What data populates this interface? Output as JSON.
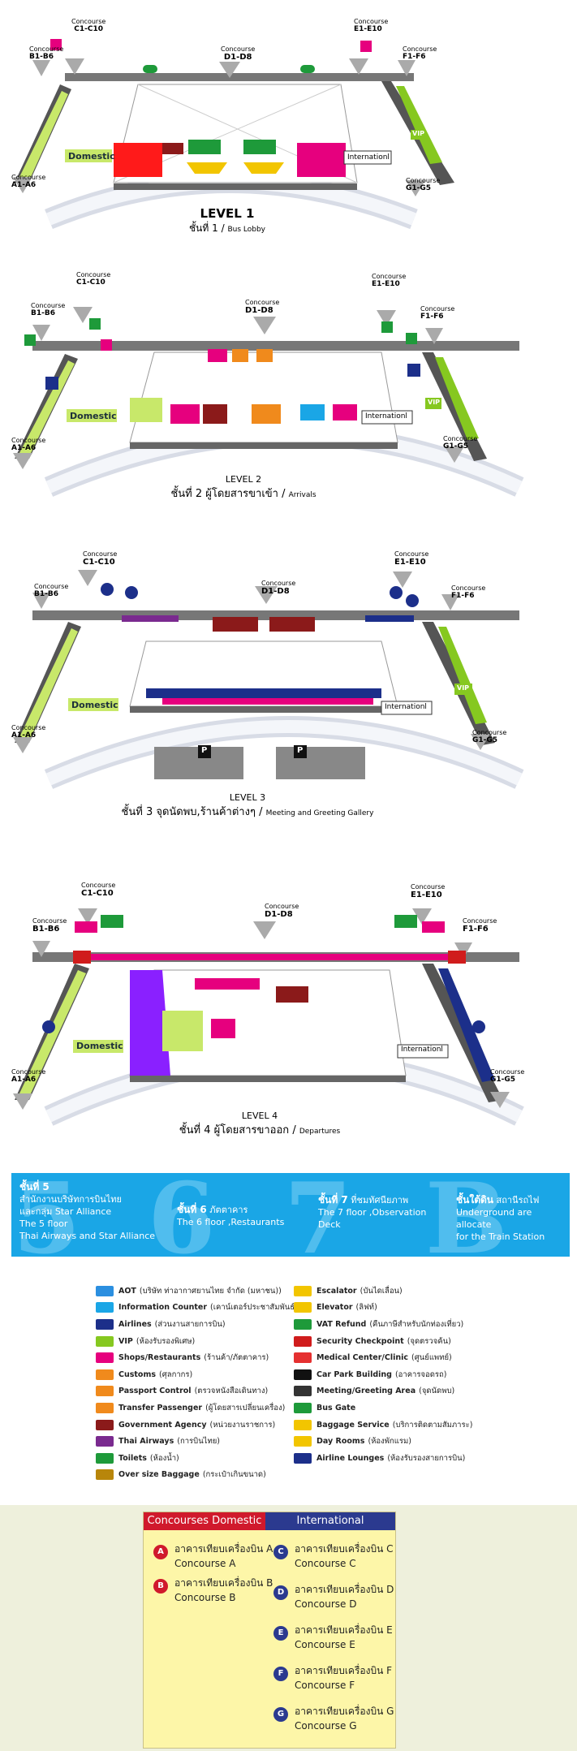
{
  "concourse_word": "Concourse",
  "labels": {
    "c": "C1-C10",
    "b": "B1-B6",
    "a": "A1-A6",
    "d": "D1-D8",
    "e": "E1-E10",
    "f": "F1-F6",
    "g": "G1-G5",
    "domestic": "Domestic",
    "international": "Internationl",
    "vip": "VIP",
    "p": "P"
  },
  "levels": {
    "l1": {
      "title": "LEVEL 1",
      "thai": "ชั้นที่ 1",
      "sep": "/",
      "eng": "Bus Lobby"
    },
    "l2": {
      "title": "LEVEL 2",
      "thai": "ชั้นที่ 2 ผู้โดยสารขาเข้า",
      "sep": "/",
      "eng": "Arrivals"
    },
    "l3": {
      "title": "LEVEL 3",
      "thai": "ชั้นที่ 3 จุดนัดพบ,ร้านค้าต่างๆ",
      "sep": "/",
      "eng": "Meeting and Greeting Gallery"
    },
    "l4": {
      "title": "LEVEL 4",
      "thai": "ชั้นที่ 4 ผู้โดยสารขาออก",
      "sep": "/",
      "eng": "Departures"
    }
  },
  "strip": {
    "b5": {
      "digit": "5",
      "head": "ชั้นที่ 5",
      "l1": "สำนักงานบริษัทการบินไทย",
      "l2": "และกลุ่ม Star Alliance",
      "l3": "The 5 floor",
      "l4": "Thai Airways and Star Alliance"
    },
    "b6": {
      "digit": "6",
      "head": "ชั้นที่ 6",
      "tail": "ภัตตาคาร",
      "l1": "The 6 floor ,Restaurants"
    },
    "b7": {
      "digit": "7",
      "head": "ชั้นที่ 7",
      "tail": "ที่ชมทัศนียภาพ",
      "l1": "The 7 floor ,Observation",
      "l2": "Deck"
    },
    "bb": {
      "digit": "B",
      "head": "ชั้นใต้ดิน",
      "tail": "สถานีรถไฟ",
      "l1": "Underground are allocate",
      "l2": "for the Train Station"
    }
  },
  "legend": {
    "left": [
      {
        "label": "AOT",
        "thai": "(บริษัท ท่าอากาศยานไทย จำกัด (มหาชน))",
        "color": "#2b8fe0"
      },
      {
        "label": "Information Counter",
        "thai": "(เคาน์เตอร์ประชาสัมพันธ์)",
        "color": "#1aa6e6"
      },
      {
        "label": "Airlines",
        "thai": "(ส่วนงานสายการบิน)",
        "color": "#1c2f8a"
      },
      {
        "label": "VIP",
        "thai": "(ห้องรับรองพิเศษ)",
        "color": "#86c820"
      },
      {
        "label": "Shops/Restaurants",
        "thai": "(ร้านค้า/ภัตตาคาร)",
        "color": "#e6007e"
      },
      {
        "label": "Customs",
        "thai": "(ศุลกากร)",
        "color": "#f08a1c"
      },
      {
        "label": "Passport Control",
        "thai": "(ตรวจหนังสือเดินทาง)",
        "color": "#f08a1c"
      },
      {
        "label": "Transfer Passenger",
        "thai": "(ผู้โดยสารเปลี่ยนเครื่อง)",
        "color": "#f08a1c"
      },
      {
        "label": "Government Agency",
        "thai": "(หน่วยงานราชการ)",
        "color": "#8b1a1a"
      },
      {
        "label": "Thai Airways",
        "thai": "(การบินไทย)",
        "color": "#7a2a8f"
      },
      {
        "label": "Toilets",
        "thai": "(ห้องน้ำ)",
        "color": "#1e9a3a"
      },
      {
        "label": "Over size Baggage",
        "thai": "(กระเป๋าเกินขนาด)",
        "color": "#b8860b"
      }
    ],
    "right": [
      {
        "label": "Escalator",
        "thai": "(บันไดเลื่อน)",
        "color": "#f2c500"
      },
      {
        "label": "Elevator",
        "thai": "(ลิฟท์)",
        "color": "#f2c500"
      },
      {
        "label": "VAT Refund",
        "thai": "(คืนภาษีสำหรับนักท่องเที่ยว)",
        "color": "#1e9a3a"
      },
      {
        "label": "Security Checkpoint",
        "thai": "(จุดตรวจค้น)",
        "color": "#d01c1c"
      },
      {
        "label": "Medical Center/Clinic",
        "thai": "(ศูนย์แพทย์)",
        "color": "#e53030"
      },
      {
        "label": "Car Park Building",
        "thai": "(อาคารจอดรถ)",
        "color": "#111111"
      },
      {
        "label": "Meeting/Greeting Area",
        "thai": "(จุดนัดพบ)",
        "color": "#333333"
      },
      {
        "label": "Bus Gate",
        "thai": "",
        "color": "#1e9a3a"
      },
      {
        "label": "Baggage Service",
        "thai": "(บริการติดตามสัมภาระ)",
        "color": "#f2c500"
      },
      {
        "label": "Day Rooms",
        "thai": "(ห้องพักแรม)",
        "color": "#f2c500"
      },
      {
        "label": "Airline Lounges",
        "thai": "(ห้องรับรองสายการบิน)",
        "color": "#1c2f8a"
      }
    ]
  },
  "table": {
    "dom_header": "Concourses Domestic",
    "int_header": "International",
    "dom": [
      {
        "letter": "A",
        "thai": "อาคารเทียบเครื่องบิน A",
        "eng": "Concourse A"
      },
      {
        "letter": "B",
        "thai": "อาคารเทียบเครื่องบิน B",
        "eng": "Concourse B"
      }
    ],
    "int": [
      {
        "letter": "C",
        "thai": "อาคารเทียบเครื่องบิน C",
        "eng": "Concourse C"
      },
      {
        "letter": "D",
        "thai": "อาคารเทียบเครื่องบิน D",
        "eng": "Concourse D"
      },
      {
        "letter": "E",
        "thai": "อาคารเทียบเครื่องบิน E",
        "eng": "Concourse E"
      },
      {
        "letter": "F",
        "thai": "อาคารเทียบเครื่องบิน F",
        "eng": "Concourse F"
      },
      {
        "letter": "G",
        "thai": "อาคารเทียบเครื่องบิน G",
        "eng": "Concourse G"
      }
    ]
  },
  "colors": {
    "domestic": "#c8e86a",
    "international_shade": "#e8e8e8",
    "pier": "#555555",
    "magenta": "#e6007e",
    "green": "#1e9a3a",
    "navy": "#1c2f8a",
    "strip": "#1aa6e6"
  }
}
